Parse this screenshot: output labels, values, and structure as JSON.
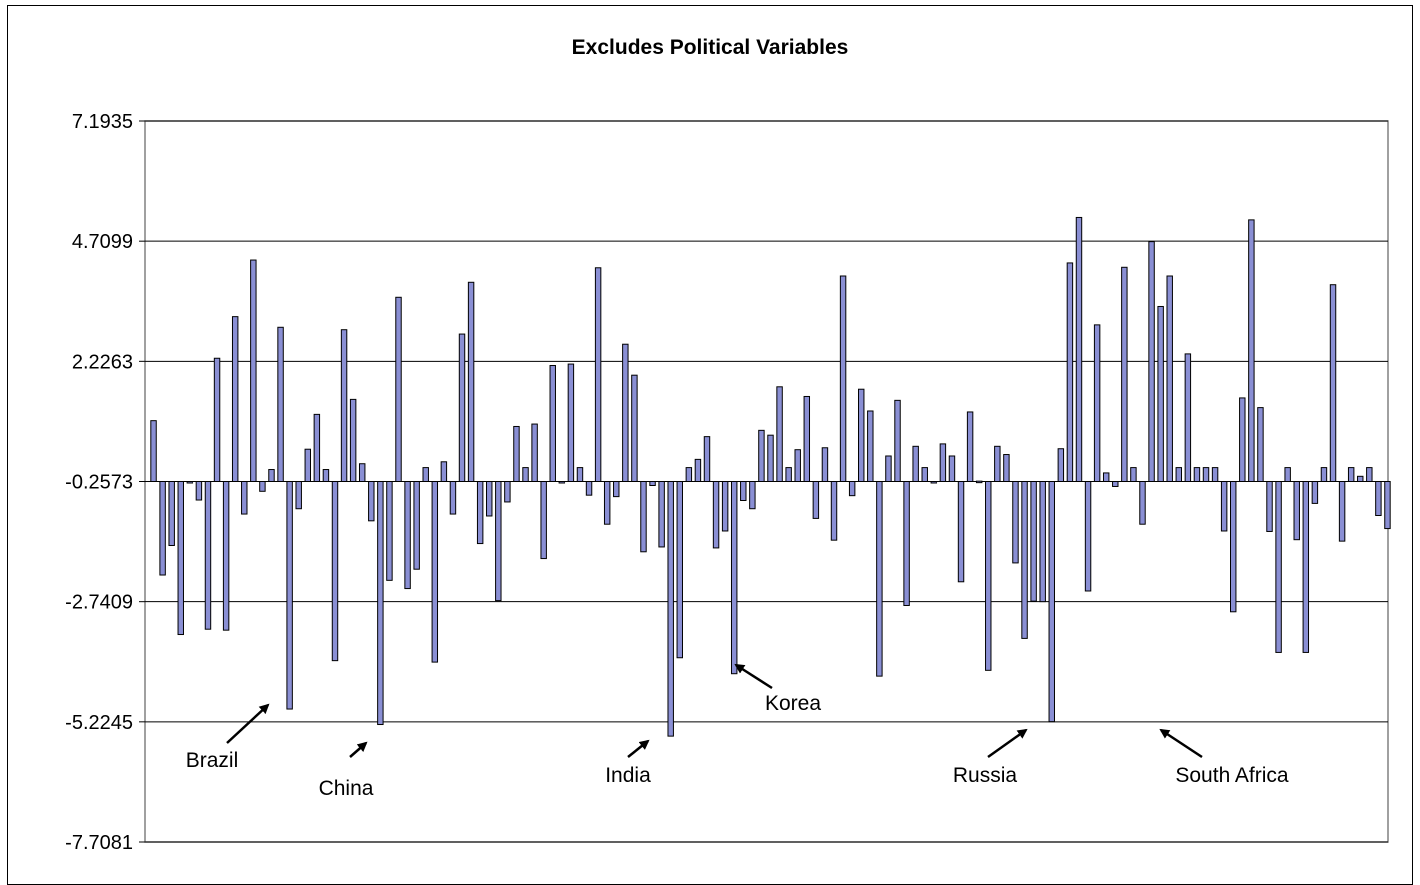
{
  "chart_data": {
    "type": "bar",
    "title": "Excludes Political Variables",
    "xlabel": "",
    "ylabel": "",
    "ylim": [
      -7.7081,
      7.1935
    ],
    "y_ticks": [
      "7.1935",
      "4.7099",
      "2.2263",
      "-0.2573",
      "-2.7409",
      "-5.2245",
      "-7.7081"
    ],
    "baseline": -0.2573,
    "grid": true,
    "legend": "none",
    "bar_color": "#8a8fd4",
    "values": [
      1.0,
      -2.19,
      -1.58,
      -3.42,
      -0.26,
      -0.64,
      -3.31,
      2.29,
      -3.33,
      3.15,
      -0.93,
      4.32,
      -0.46,
      -0.01,
      2.93,
      -4.96,
      -0.82,
      0.41,
      1.13,
      -0.01,
      -3.96,
      2.88,
      1.44,
      0.11,
      -1.07,
      -5.28,
      -2.3,
      3.55,
      -2.47,
      -2.07,
      0.03,
      -3.99,
      0.15,
      -0.93,
      2.79,
      3.86,
      -1.54,
      -0.97,
      -2.72,
      -0.68,
      0.88,
      0.03,
      0.93,
      -1.85,
      2.14,
      -0.26,
      2.17,
      0.03,
      -0.54,
      4.16,
      -1.14,
      -0.57,
      2.58,
      1.94,
      -1.71,
      -0.34,
      -1.61,
      -5.52,
      -3.9,
      0.03,
      0.2,
      0.67,
      -1.63,
      -1.28,
      -4.23,
      -0.65,
      -0.82,
      0.8,
      0.7,
      1.7,
      0.03,
      0.4,
      1.5,
      -1.02,
      0.44,
      -1.47,
      3.99,
      -0.55,
      1.65,
      1.2,
      -4.28,
      0.27,
      1.42,
      -2.82,
      0.47,
      0.03,
      -0.26,
      0.52,
      0.27,
      -2.33,
      1.18,
      -0.25,
      -4.16,
      0.47,
      0.3,
      -1.94,
      -3.5,
      -2.73,
      -2.74,
      -5.22,
      0.42,
      4.26,
      5.2,
      -2.52,
      2.98,
      -0.08,
      -0.36,
      4.17,
      0.03,
      -1.14,
      4.7,
      3.36,
      3.99,
      0.03,
      2.38,
      0.03,
      0.03,
      0.03,
      -1.28,
      -2.95,
      1.47,
      5.15,
      1.27,
      -1.29,
      -3.79,
      0.03,
      -1.46,
      -3.79,
      -0.71,
      0.03,
      3.81,
      -1.49,
      0.03,
      -0.15,
      0.03,
      -0.96,
      -1.23
    ],
    "annotations": [
      {
        "label": "Brazil",
        "series_index": 15
      },
      {
        "label": "China",
        "series_index": 25
      },
      {
        "label": "India",
        "series_index": 57
      },
      {
        "label": "Korea",
        "series_index": 64
      },
      {
        "label": "Russia",
        "series_index": 99
      },
      {
        "label": "South Africa",
        "series_index": 110
      }
    ]
  }
}
